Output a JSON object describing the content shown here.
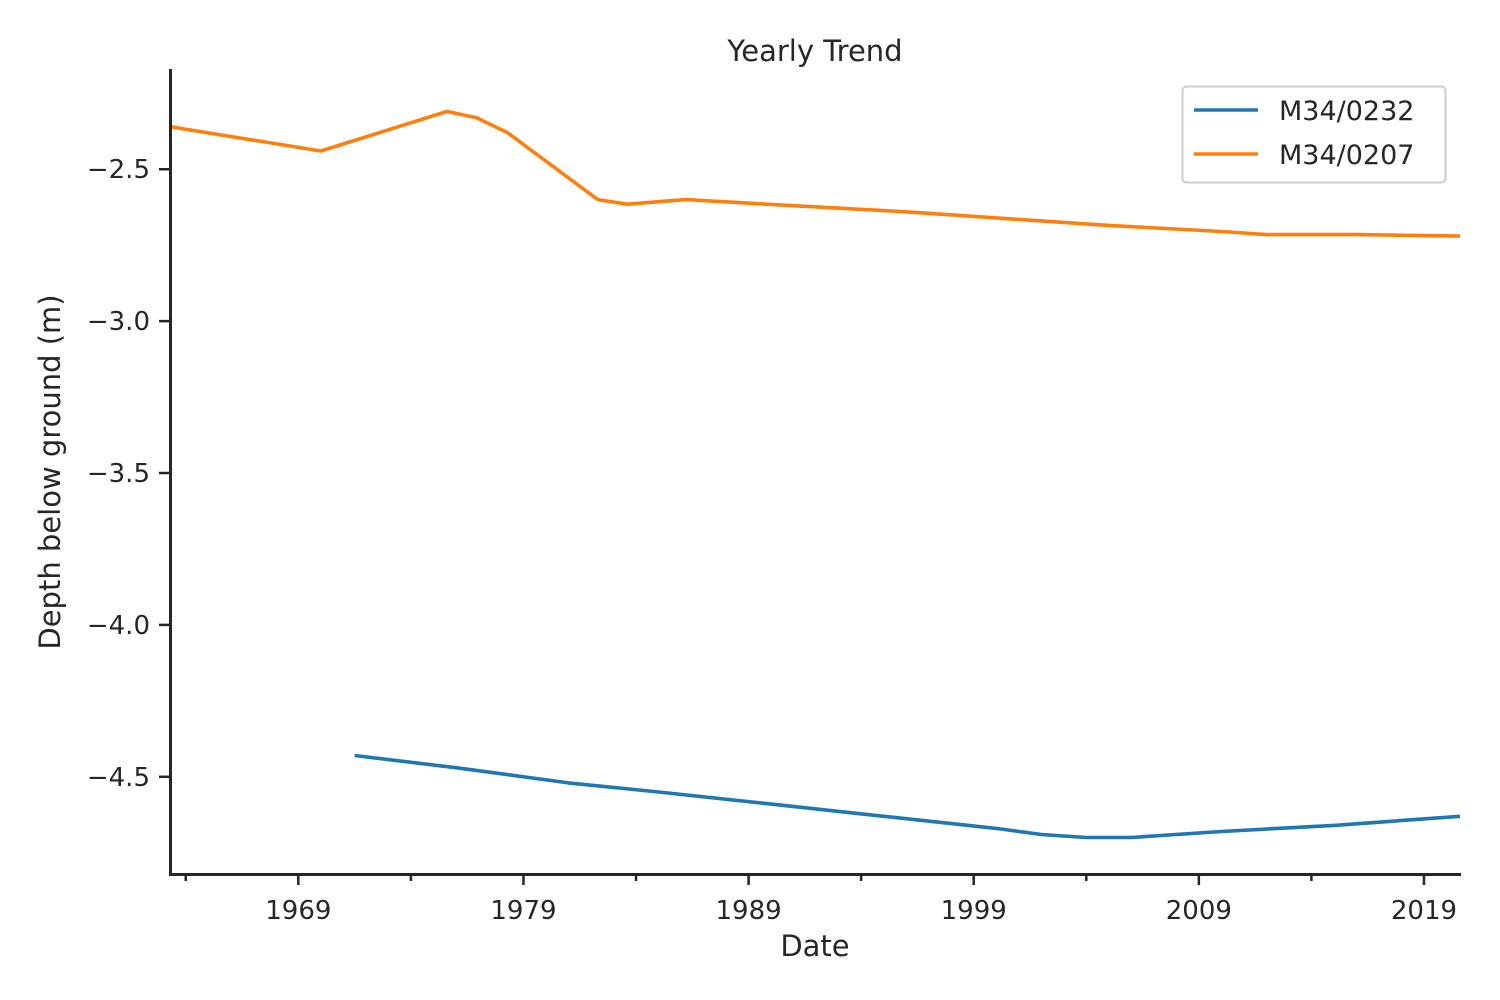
{
  "chart_data": {
    "type": "line",
    "title": "Yearly Trend",
    "xlabel": "Date",
    "ylabel": "Depth below ground (m)",
    "xlim": [
      1963.3,
      2020.6
    ],
    "ylim": [
      -4.82,
      -2.17
    ],
    "x_ticks": [
      1969,
      1979,
      1989,
      1999,
      2009,
      2019
    ],
    "x_minor_ticks": [
      1964,
      1974,
      1984,
      1994,
      2004,
      2014
    ],
    "y_ticks": [
      -2.5,
      -3.0,
      -3.5,
      -4.0,
      -4.5
    ],
    "y_tick_labels": [
      "−2.5",
      "−3.0",
      "−3.5",
      "−4.0",
      "−4.5"
    ],
    "grid": false,
    "legend": "top-right",
    "series": [
      {
        "name": "M34/0232",
        "color": "#1f77b4",
        "x": [
          1971.5,
          1976,
          1981,
          1985,
          1990,
          1995,
          2000,
          2002,
          2004,
          2006,
          2010,
          2015,
          2020.6
        ],
        "y": [
          -4.43,
          -4.47,
          -4.52,
          -4.55,
          -4.59,
          -4.63,
          -4.67,
          -4.69,
          -4.7,
          -4.7,
          -4.68,
          -4.66,
          -4.63
        ]
      },
      {
        "name": "M34/0207",
        "color": "#ff7f0e",
        "x": [
          1963.3,
          1970,
          1975.6,
          1976.9,
          1978.3,
          1982.3,
          1983.6,
          1986.2,
          1991,
          1996,
          2001,
          2005,
          2010,
          2012,
          2016,
          2020.6
        ],
        "y": [
          -2.36,
          -2.44,
          -2.31,
          -2.33,
          -2.38,
          -2.6,
          -2.615,
          -2.6,
          -2.62,
          -2.64,
          -2.665,
          -2.685,
          -2.705,
          -2.715,
          -2.715,
          -2.72
        ]
      }
    ]
  }
}
